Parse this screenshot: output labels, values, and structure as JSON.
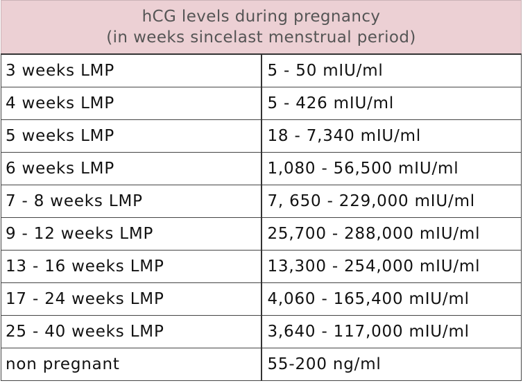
{
  "table": {
    "title_line1": "hCG levels during pregnancy",
    "title_line2": "(in weeks sincelast menstrual period)",
    "rows": [
      {
        "weeks": "3 weeks LMP",
        "level": "5 - 50 mIU/ml"
      },
      {
        "weeks": "4 weeks LMP",
        "level": "5 - 426 mIU/ml"
      },
      {
        "weeks": "5 weeks LMP",
        "level": "18 - 7,340 mIU/ml"
      },
      {
        "weeks": "6 weeks LMP",
        "level": "1,080 - 56,500 mIU/ml"
      },
      {
        "weeks": "7 - 8 weeks LMP",
        "level": "7, 650 - 229,000 mIU/ml"
      },
      {
        "weeks": "9 - 12 weeks LMP",
        "level": "25,700 - 288,000 mIU/ml"
      },
      {
        "weeks": "13 - 16 weeks LMP",
        "level": "13,300 - 254,000 mIU/ml"
      },
      {
        "weeks": "17 - 24 weeks LMP",
        "level": "4,060 - 165,400 mIU/ml"
      },
      {
        "weeks": "25 - 40 weeks LMP",
        "level": "3,640 - 117,000 mIU/ml"
      },
      {
        "weeks": "non pregnant",
        "level": "55-200 ng/ml"
      }
    ]
  },
  "colors": {
    "header_background": "#ecd0d4",
    "header_text": "#555555",
    "body_text": "#111111",
    "border": "#444444"
  }
}
